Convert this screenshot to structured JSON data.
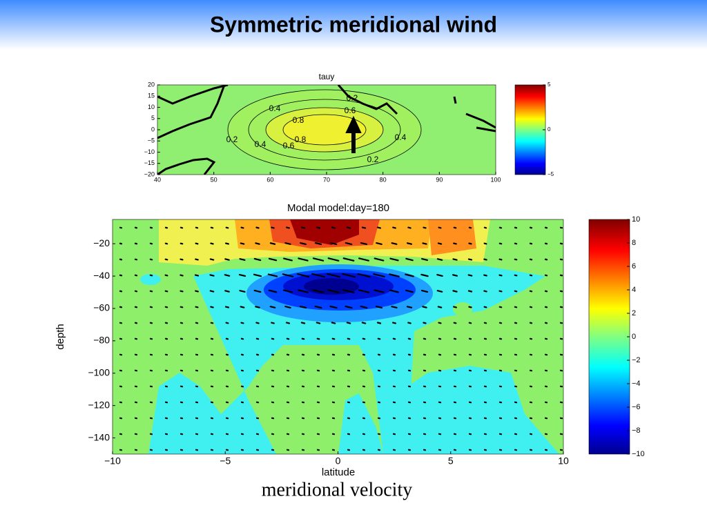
{
  "header": {
    "title": "Symmetric meridional wind"
  },
  "chart_data": [
    {
      "type": "contour",
      "title": "tauy",
      "xlim": [
        40,
        100
      ],
      "xticks": [
        40,
        50,
        60,
        70,
        80,
        90,
        100
      ],
      "ylim": [
        -20,
        20
      ],
      "yticks": [
        {
          "value": -20,
          "label": "−20"
        },
        {
          "value": -15,
          "label": "−15"
        },
        {
          "value": -10,
          "label": "−10"
        },
        {
          "value": -5,
          "label": "−5"
        },
        0,
        5,
        10,
        15,
        20
      ],
      "colorbar": {
        "lim": [
          -5,
          5
        ],
        "ticks": [
          {
            "value": -5,
            "label": "−5"
          },
          0,
          5
        ]
      },
      "contour_labels": [
        0.2,
        0.4,
        0.6,
        0.8,
        0.8,
        0.6,
        0.4,
        0.2,
        0.4,
        0.2
      ]
    },
    {
      "type": "contour",
      "title": "Modal model:day=180",
      "xlabel": "latitude",
      "ylabel": "depth",
      "xlim": [
        -10,
        10
      ],
      "xticks": [
        {
          "value": -10,
          "label": "−10"
        },
        {
          "value": -5,
          "label": "−5"
        },
        0,
        5,
        10
      ],
      "ylim": [
        -150,
        -5
      ],
      "yticks": [
        {
          "value": -140,
          "label": "−140"
        },
        {
          "value": -120,
          "label": "−120"
        },
        {
          "value": -100,
          "label": "−100"
        },
        {
          "value": -80,
          "label": "−80"
        },
        {
          "value": -60,
          "label": "−60"
        },
        {
          "value": -40,
          "label": "−40"
        },
        {
          "value": -20,
          "label": "−20"
        }
      ],
      "colorbar": {
        "lim": [
          -10,
          10
        ],
        "ticks": [
          {
            "value": -10,
            "label": "−10"
          },
          {
            "value": -8,
            "label": "−8"
          },
          {
            "value": -6,
            "label": "−6"
          },
          {
            "value": -4,
            "label": "−4"
          },
          {
            "value": -2,
            "label": "−2"
          },
          0,
          2,
          4,
          6,
          8,
          10
        ]
      }
    }
  ],
  "caption": "meridional velocity"
}
